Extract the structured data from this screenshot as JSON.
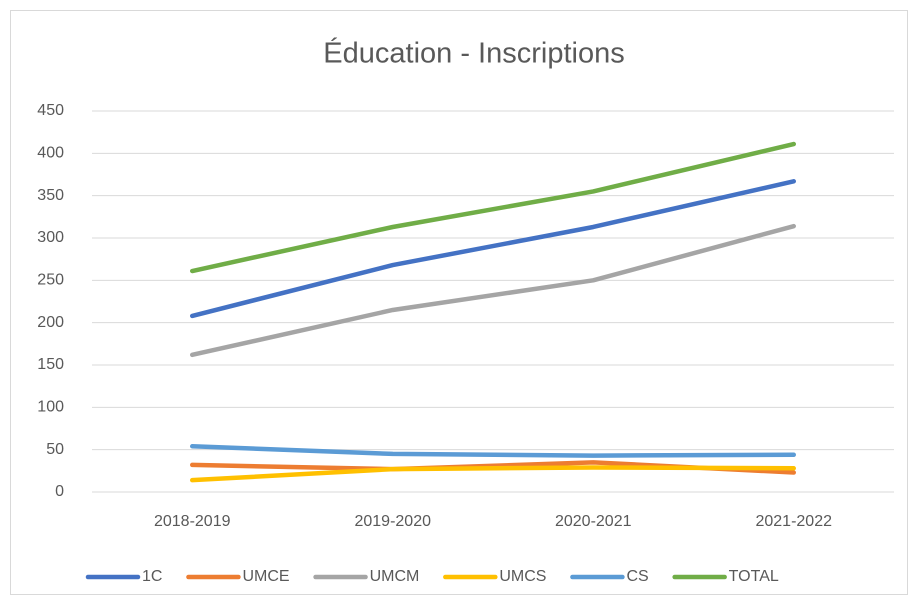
{
  "chart_data": {
    "type": "line",
    "title": "Éducation - Inscriptions",
    "categories": [
      "2018-2019",
      "2019-2020",
      "2020-2021",
      "2021-2022"
    ],
    "series": [
      {
        "name": "1C",
        "color": "#4472c4",
        "values": [
          208,
          268,
          313,
          367
        ]
      },
      {
        "name": "UMCE",
        "color": "#ed7d31",
        "values": [
          32,
          27,
          35,
          23
        ]
      },
      {
        "name": "UMCM",
        "color": "#a5a5a5",
        "values": [
          162,
          215,
          250,
          314
        ]
      },
      {
        "name": "UMCS",
        "color": "#ffc000",
        "values": [
          14,
          27,
          29,
          28
        ]
      },
      {
        "name": "CS",
        "color": "#5b9bd5",
        "values": [
          54,
          45,
          43,
          44
        ]
      },
      {
        "name": "TOTAL",
        "color": "#70ad47",
        "values": [
          261,
          313,
          355,
          411
        ]
      }
    ],
    "ylim": [
      0,
      450
    ],
    "yticks": [
      0,
      50,
      100,
      150,
      200,
      250,
      300,
      350,
      400,
      450
    ],
    "grid": true,
    "legend": "bottom"
  }
}
